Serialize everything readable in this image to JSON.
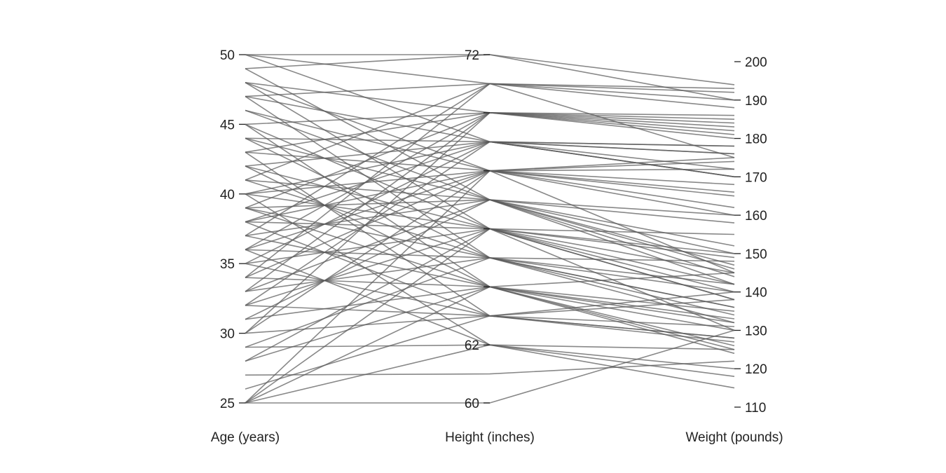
{
  "chart_data": {
    "type": "parallel-coordinates",
    "title": "",
    "line_color": "#5a5a5a",
    "axes": [
      {
        "name": "age",
        "label": "Age (years)",
        "range": [
          25,
          50
        ],
        "ticks": [
          25,
          30,
          35,
          40,
          45,
          50
        ],
        "tick_side": "left"
      },
      {
        "name": "height",
        "label": "Height (inches)",
        "range": [
          60,
          72
        ],
        "ticks": [
          60,
          62,
          64,
          66,
          68,
          70,
          72
        ],
        "tick_labels": [
          "60",
          "62",
          "",
          "",
          "",
          "",
          "72"
        ],
        "tick_side": "left"
      },
      {
        "name": "weight",
        "label": "Weight (pounds)",
        "range": [
          110,
          200
        ],
        "ticks": [
          110,
          120,
          130,
          140,
          150,
          160,
          170,
          180,
          190,
          200
        ],
        "tick_side": "right"
      }
    ],
    "records": [
      [
        25,
        60,
        130
      ],
      [
        25,
        62,
        125
      ],
      [
        25,
        64,
        135
      ],
      [
        25,
        66,
        140
      ],
      [
        25,
        68,
        145
      ],
      [
        26,
        63,
        128
      ],
      [
        27,
        61,
        122
      ],
      [
        28,
        64,
        145
      ],
      [
        28,
        66,
        150
      ],
      [
        29,
        65,
        148
      ],
      [
        29,
        62,
        120
      ],
      [
        30,
        63,
        138
      ],
      [
        30,
        68,
        175
      ],
      [
        30,
        70,
        185
      ],
      [
        31,
        64,
        132
      ],
      [
        31,
        67,
        160
      ],
      [
        32,
        66,
        155
      ],
      [
        32,
        69,
        170
      ],
      [
        32,
        63,
        140
      ],
      [
        33,
        65,
        142
      ],
      [
        33,
        70,
        180
      ],
      [
        33,
        67,
        152
      ],
      [
        34,
        64,
        130
      ],
      [
        34,
        68,
        165
      ],
      [
        34,
        71,
        190
      ],
      [
        35,
        66,
        138
      ],
      [
        35,
        63,
        127
      ],
      [
        35,
        69,
        178
      ],
      [
        36,
        65,
        134
      ],
      [
        36,
        68,
        172
      ],
      [
        36,
        70,
        186
      ],
      [
        36,
        62,
        118
      ],
      [
        37,
        64,
        125
      ],
      [
        37,
        67,
        150
      ],
      [
        37,
        71,
        188
      ],
      [
        38,
        66,
        145
      ],
      [
        38,
        69,
        176
      ],
      [
        38,
        63,
        131
      ],
      [
        38,
        68,
        168
      ],
      [
        39,
        65,
        140
      ],
      [
        39,
        70,
        182
      ],
      [
        39,
        67,
        158
      ],
      [
        39,
        64,
        126
      ],
      [
        40,
        66,
        142
      ],
      [
        40,
        69,
        172
      ],
      [
        40,
        62,
        115
      ],
      [
        40,
        68,
        166
      ],
      [
        41,
        65,
        136
      ],
      [
        41,
        71,
        192
      ],
      [
        41,
        67,
        146
      ],
      [
        42,
        64,
        133
      ],
      [
        42,
        69,
        170
      ],
      [
        42,
        66,
        149
      ],
      [
        43,
        68,
        162
      ],
      [
        43,
        70,
        184
      ],
      [
        43,
        63,
        128
      ],
      [
        44,
        67,
        144
      ],
      [
        44,
        65,
        132
      ],
      [
        44,
        69,
        176
      ],
      [
        45,
        66,
        138
      ],
      [
        45,
        70,
        183
      ],
      [
        45,
        64,
        124
      ],
      [
        46,
        68,
        174
      ],
      [
        46,
        67,
        142
      ],
      [
        47,
        69,
        178
      ],
      [
        47,
        65,
        136
      ],
      [
        47,
        71,
        193
      ],
      [
        48,
        66,
        130
      ],
      [
        48,
        70,
        181
      ],
      [
        48,
        68,
        160
      ],
      [
        49,
        67,
        147
      ],
      [
        49,
        72,
        194
      ],
      [
        50,
        69,
        170
      ],
      [
        50,
        72,
        190
      ],
      [
        50,
        71,
        175
      ]
    ]
  }
}
